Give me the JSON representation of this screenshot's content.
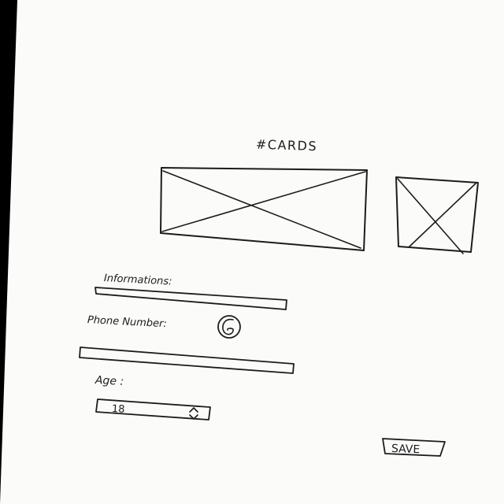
{
  "screen": {
    "title": "#CARDS",
    "informations_label": "Informations:",
    "phone_label": "Phone Number:",
    "age_label": "Age :",
    "age_value": "18",
    "save_label": "SAVE"
  },
  "icons": {
    "phone": "call-icon",
    "stepper": "up-down-chevron-icon",
    "image_placeholder": "image-placeholder-icon"
  },
  "colors": {
    "paper": "#fbfbfa",
    "ink": "#1c1c1c",
    "scan_border": "#000000"
  }
}
